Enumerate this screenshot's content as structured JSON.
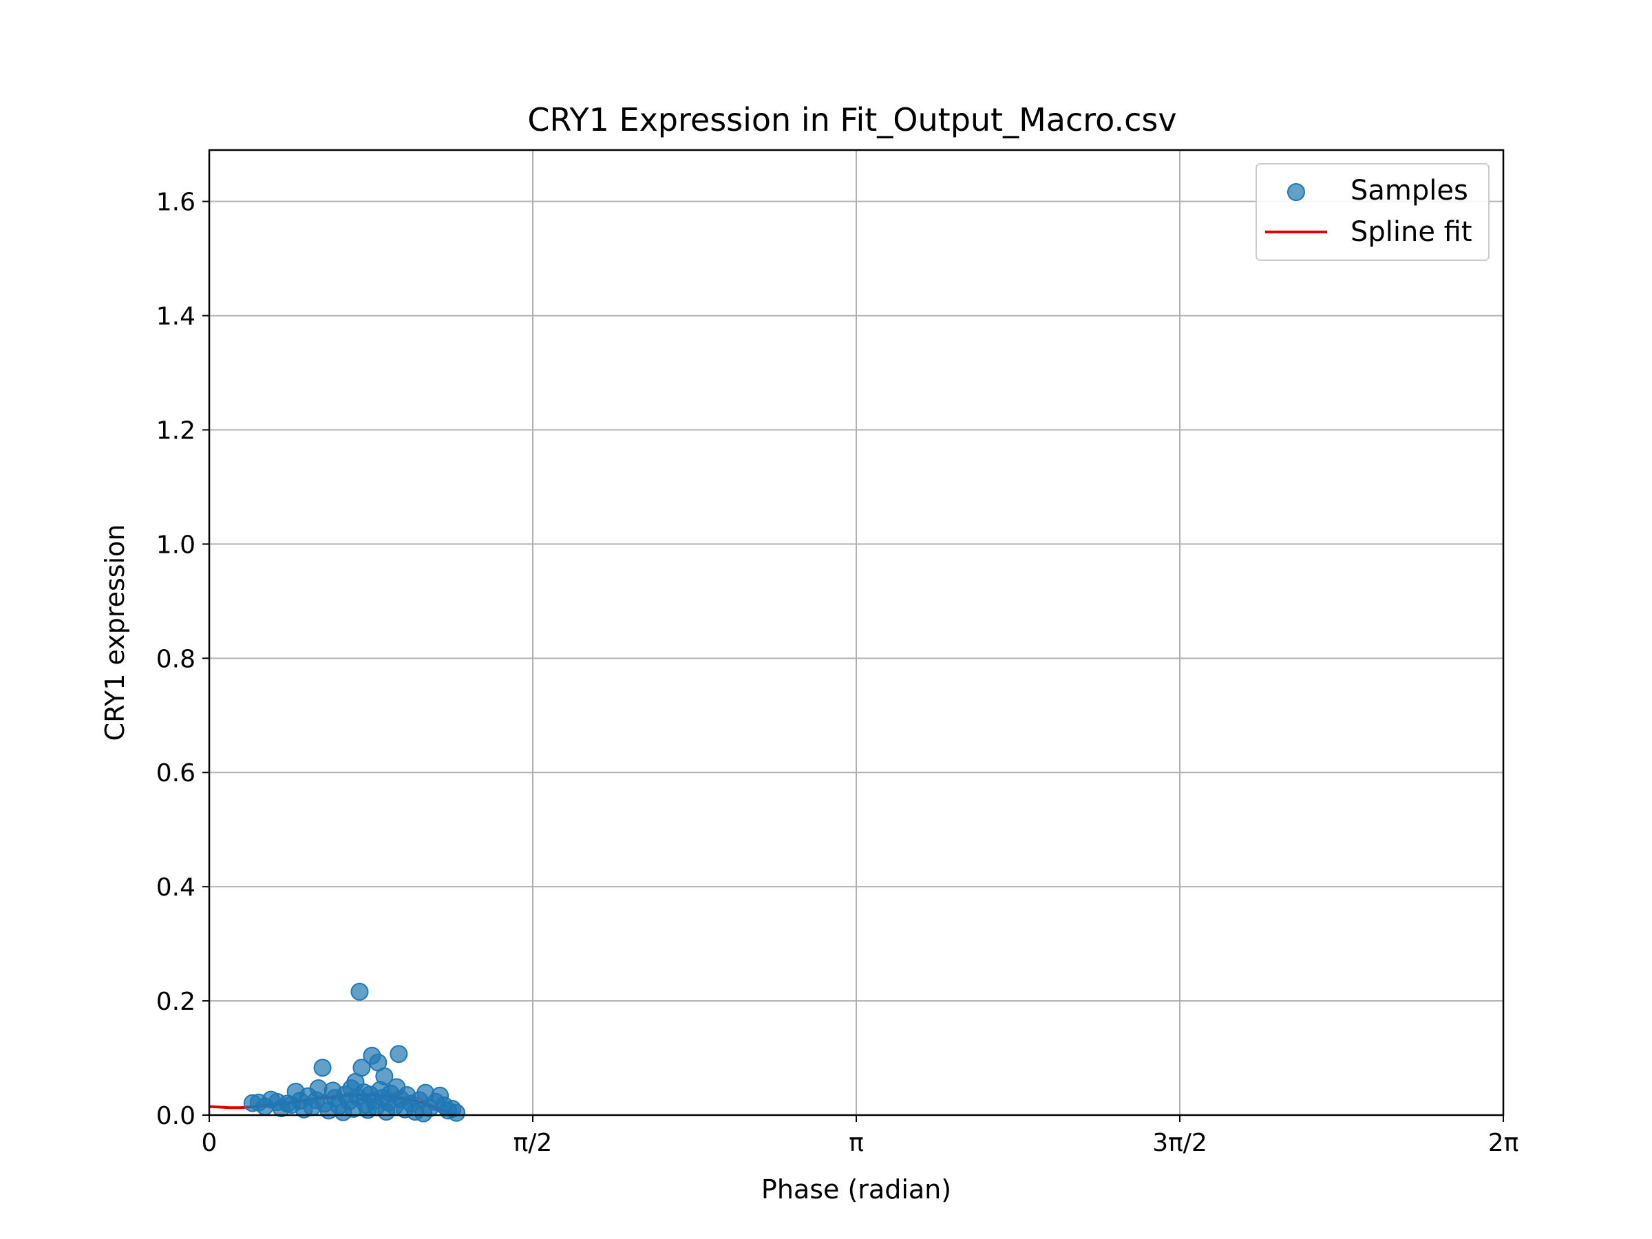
{
  "chart_data": {
    "type": "scatter",
    "title": "CRY1 Expression in Fit_Output_Macro.csv",
    "xlabel": "Phase (radian)",
    "ylabel": "CRY1 expression",
    "xlim": [
      0,
      6.283185
    ],
    "ylim": [
      0,
      1.69
    ],
    "x_ticks": [
      {
        "value": 0,
        "label": "0"
      },
      {
        "value": 1.570796,
        "label": "π/2"
      },
      {
        "value": 3.141593,
        "label": "π"
      },
      {
        "value": 4.712389,
        "label": "3π/2"
      },
      {
        "value": 6.283185,
        "label": "2π"
      }
    ],
    "y_ticks": [
      {
        "value": 0.0,
        "label": "0.0"
      },
      {
        "value": 0.2,
        "label": "0.2"
      },
      {
        "value": 0.4,
        "label": "0.4"
      },
      {
        "value": 0.6,
        "label": "0.6"
      },
      {
        "value": 0.8,
        "label": "0.8"
      },
      {
        "value": 1.0,
        "label": "1.0"
      },
      {
        "value": 1.2,
        "label": "1.2"
      },
      {
        "value": 1.4,
        "label": "1.4"
      },
      {
        "value": 1.6,
        "label": "1.6"
      }
    ],
    "grid": true,
    "legend_position": "top-right",
    "series": [
      {
        "name": "Samples",
        "kind": "scatter",
        "color": "#1f77b4",
        "points": [
          {
            "x": 0.21,
            "y": 0.021
          },
          {
            "x": 0.24,
            "y": 0.022
          },
          {
            "x": 0.27,
            "y": 0.015
          },
          {
            "x": 0.3,
            "y": 0.027
          },
          {
            "x": 0.33,
            "y": 0.023
          },
          {
            "x": 0.35,
            "y": 0.012
          },
          {
            "x": 0.38,
            "y": 0.02
          },
          {
            "x": 0.4,
            "y": 0.018
          },
          {
            "x": 0.42,
            "y": 0.041
          },
          {
            "x": 0.44,
            "y": 0.025
          },
          {
            "x": 0.46,
            "y": 0.01
          },
          {
            "x": 0.48,
            "y": 0.033
          },
          {
            "x": 0.5,
            "y": 0.014
          },
          {
            "x": 0.52,
            "y": 0.026
          },
          {
            "x": 0.53,
            "y": 0.047
          },
          {
            "x": 0.55,
            "y": 0.083
          },
          {
            "x": 0.56,
            "y": 0.02
          },
          {
            "x": 0.58,
            "y": 0.008
          },
          {
            "x": 0.6,
            "y": 0.043
          },
          {
            "x": 0.61,
            "y": 0.03
          },
          {
            "x": 0.63,
            "y": 0.016
          },
          {
            "x": 0.65,
            "y": 0.005
          },
          {
            "x": 0.66,
            "y": 0.036
          },
          {
            "x": 0.68,
            "y": 0.024
          },
          {
            "x": 0.69,
            "y": 0.047
          },
          {
            "x": 0.7,
            "y": 0.011
          },
          {
            "x": 0.71,
            "y": 0.058
          },
          {
            "x": 0.72,
            "y": 0.032
          },
          {
            "x": 0.73,
            "y": 0.216
          },
          {
            "x": 0.74,
            "y": 0.083
          },
          {
            "x": 0.75,
            "y": 0.04
          },
          {
            "x": 0.76,
            "y": 0.018
          },
          {
            "x": 0.77,
            "y": 0.009
          },
          {
            "x": 0.78,
            "y": 0.036
          },
          {
            "x": 0.79,
            "y": 0.104
          },
          {
            "x": 0.8,
            "y": 0.025
          },
          {
            "x": 0.81,
            "y": 0.014
          },
          {
            "x": 0.82,
            "y": 0.092
          },
          {
            "x": 0.83,
            "y": 0.044
          },
          {
            "x": 0.84,
            "y": 0.03
          },
          {
            "x": 0.85,
            "y": 0.068
          },
          {
            "x": 0.86,
            "y": 0.006
          },
          {
            "x": 0.87,
            "y": 0.022
          },
          {
            "x": 0.88,
            "y": 0.038
          },
          {
            "x": 0.9,
            "y": 0.015
          },
          {
            "x": 0.91,
            "y": 0.049
          },
          {
            "x": 0.92,
            "y": 0.107
          },
          {
            "x": 0.93,
            "y": 0.028
          },
          {
            "x": 0.95,
            "y": 0.01
          },
          {
            "x": 0.96,
            "y": 0.035
          },
          {
            "x": 0.98,
            "y": 0.02
          },
          {
            "x": 1.0,
            "y": 0.006
          },
          {
            "x": 1.02,
            "y": 0.026
          },
          {
            "x": 1.04,
            "y": 0.003
          },
          {
            "x": 1.05,
            "y": 0.039
          },
          {
            "x": 1.07,
            "y": 0.012
          },
          {
            "x": 1.1,
            "y": 0.023
          },
          {
            "x": 1.12,
            "y": 0.034
          },
          {
            "x": 1.14,
            "y": 0.017
          },
          {
            "x": 1.16,
            "y": 0.008
          },
          {
            "x": 1.18,
            "y": 0.011
          },
          {
            "x": 1.2,
            "y": 0.004
          }
        ]
      },
      {
        "name": "Spline fit",
        "kind": "line",
        "color": "#e00000",
        "points": [
          {
            "x": 0.0,
            "y": 0.015
          },
          {
            "x": 0.05,
            "y": 0.014
          },
          {
            "x": 0.1,
            "y": 0.013
          },
          {
            "x": 0.15,
            "y": 0.013
          },
          {
            "x": 0.2,
            "y": 0.014
          },
          {
            "x": 0.25,
            "y": 0.016
          },
          {
            "x": 0.3,
            "y": 0.018
          },
          {
            "x": 0.35,
            "y": 0.02
          },
          {
            "x": 0.4,
            "y": 0.022
          },
          {
            "x": 0.45,
            "y": 0.025
          },
          {
            "x": 0.5,
            "y": 0.028
          },
          {
            "x": 0.55,
            "y": 0.03
          },
          {
            "x": 0.6,
            "y": 0.032
          },
          {
            "x": 0.65,
            "y": 0.034
          },
          {
            "x": 0.7,
            "y": 0.035
          },
          {
            "x": 0.75,
            "y": 0.036
          },
          {
            "x": 0.8,
            "y": 0.035
          },
          {
            "x": 0.85,
            "y": 0.034
          },
          {
            "x": 0.9,
            "y": 0.032
          },
          {
            "x": 0.95,
            "y": 0.029
          },
          {
            "x": 1.0,
            "y": 0.025
          },
          {
            "x": 1.05,
            "y": 0.02
          },
          {
            "x": 1.1,
            "y": 0.013
          },
          {
            "x": 1.15,
            "y": 0.006
          },
          {
            "x": 1.2,
            "y": 0.0
          }
        ]
      }
    ]
  }
}
